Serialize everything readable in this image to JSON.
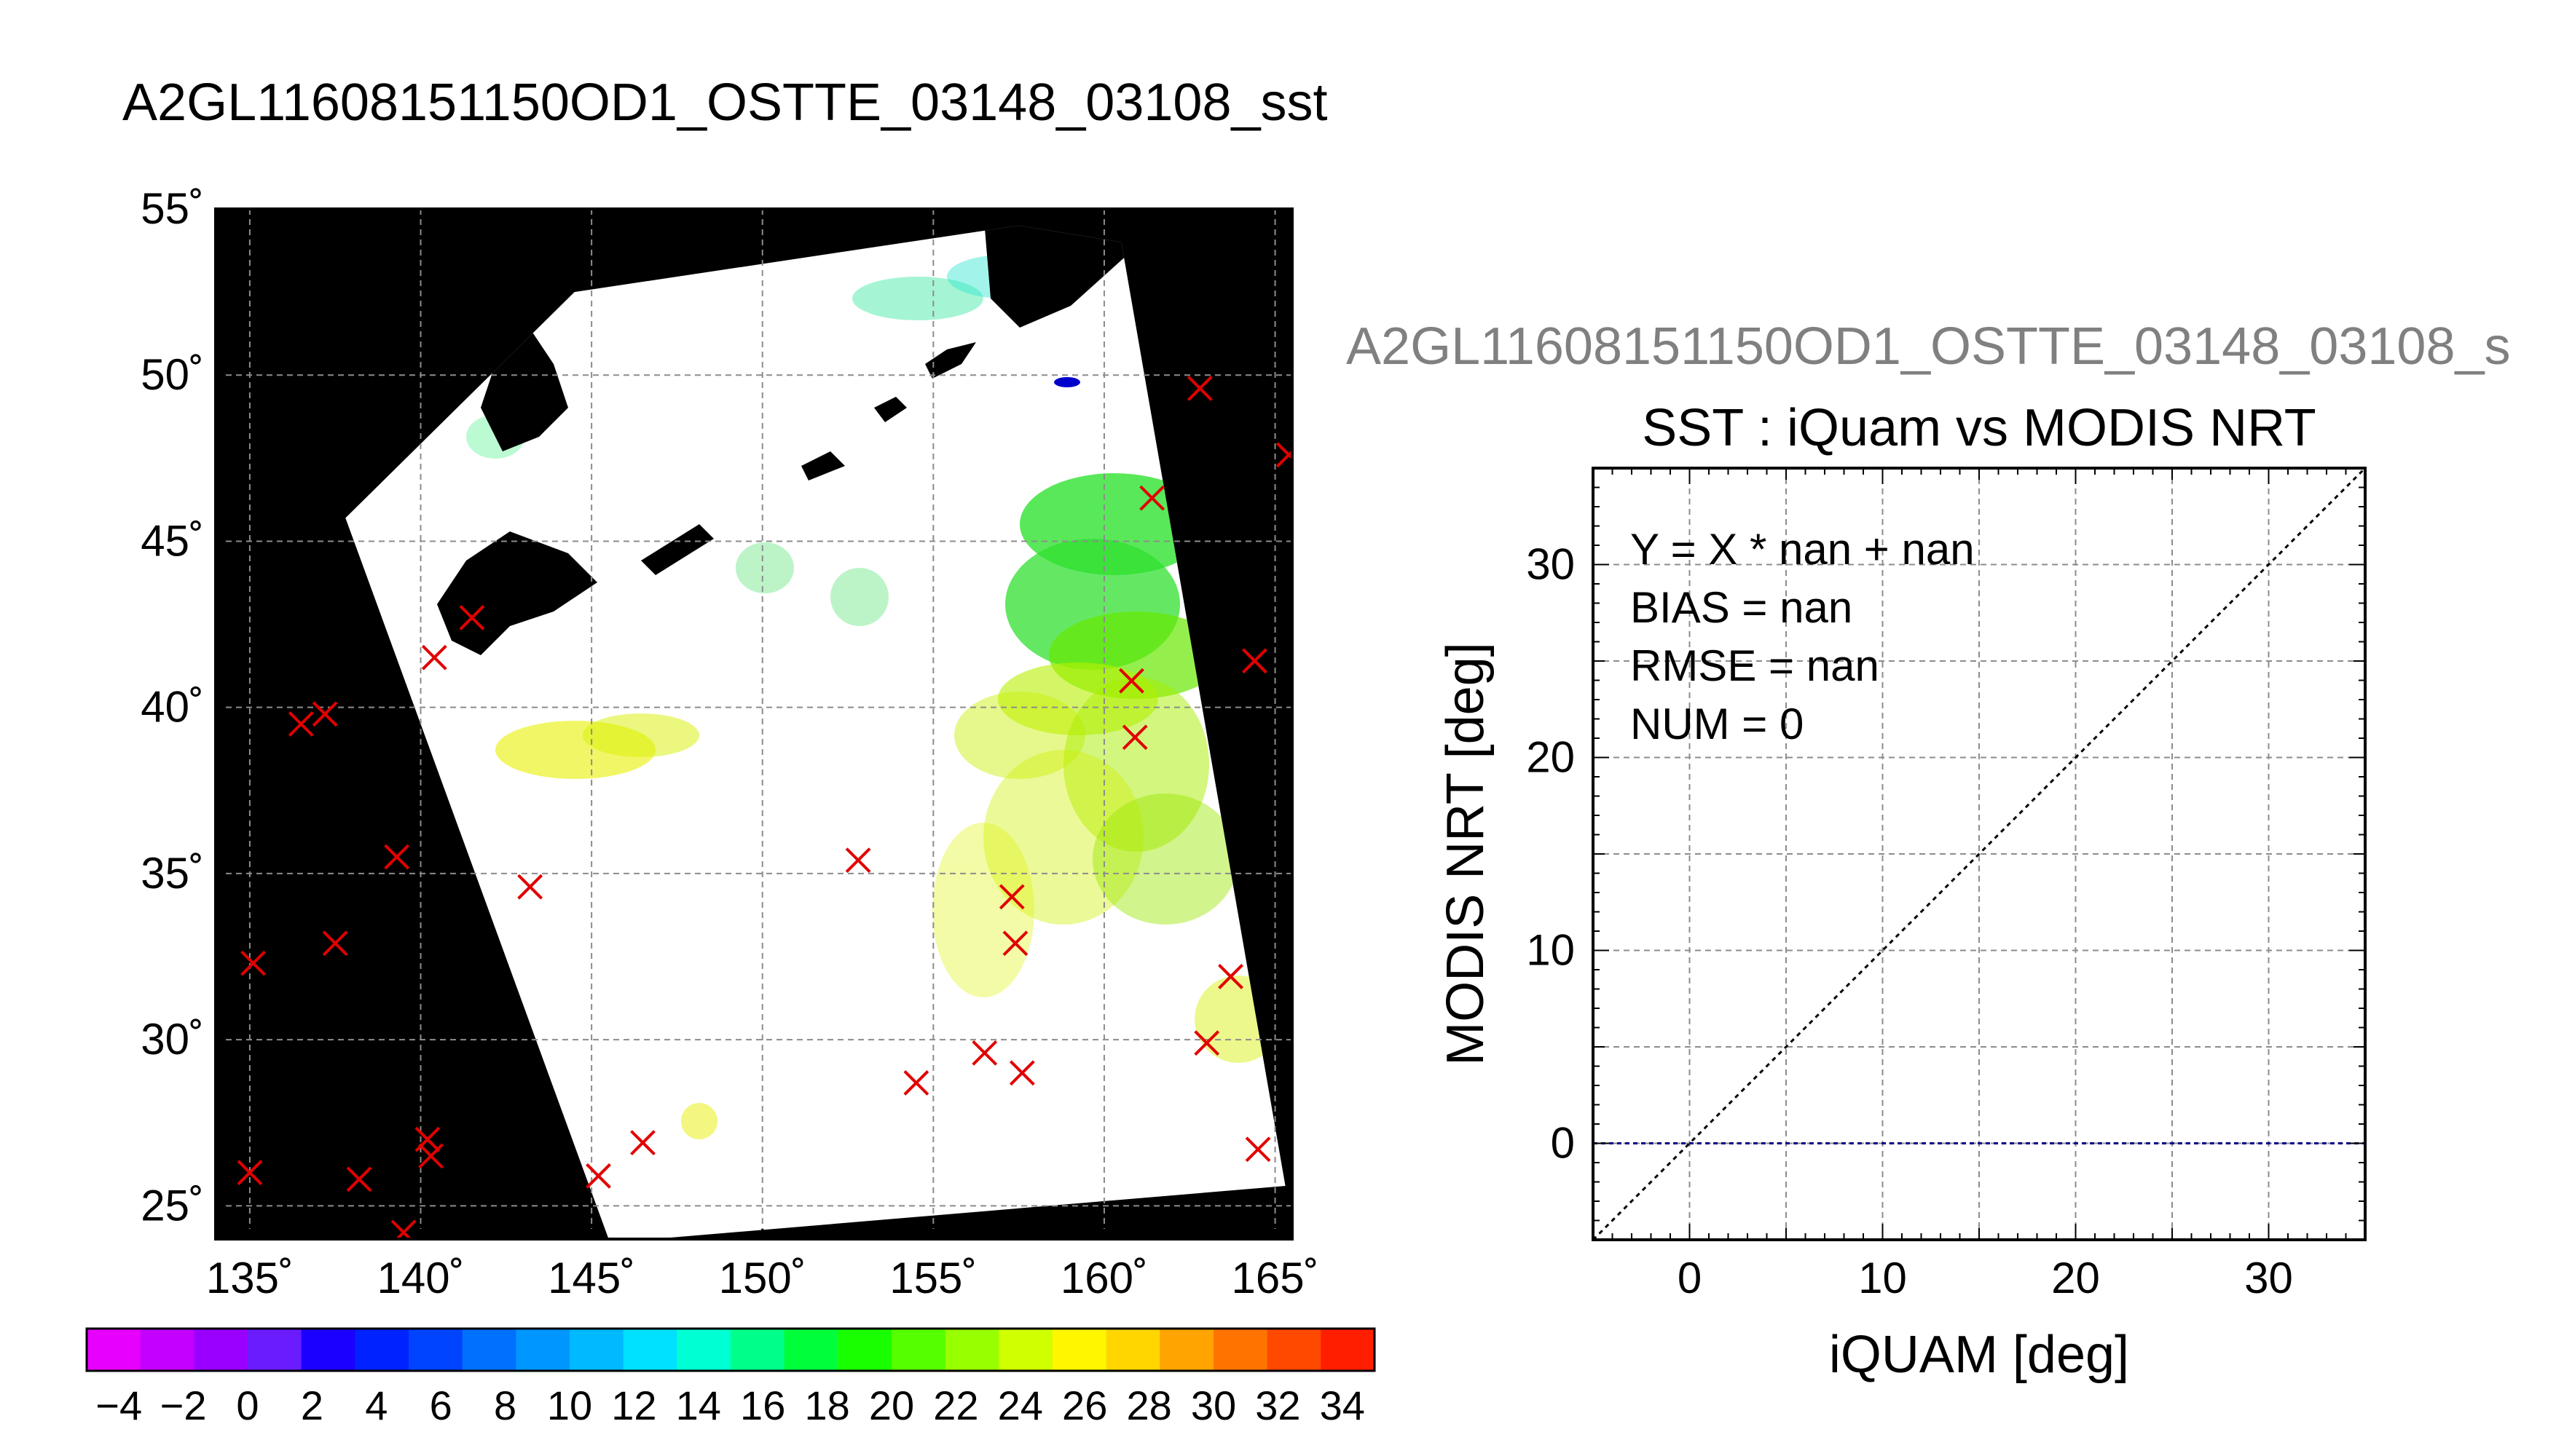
{
  "map_title": "A2GL11608151150OD1_OSTTE_03148_03108_sst",
  "scatter_title_overflow": "A2GL11608151150OD1_OSTTE_03148_03108_s",
  "colors": {
    "background": "#ffffff",
    "land": "#000000",
    "grid": "#8c8c8c",
    "marker": "#e10000",
    "fit_line": "#00008b",
    "identity_line": "#000000",
    "overflow_title": "#808080"
  },
  "chart_data": [
    {
      "type": "scatter",
      "subtype": "map",
      "title": "A2GL11608151150OD1_OSTTE_03148_03108_sst",
      "xlim": [
        134,
        165.5
      ],
      "ylim": [
        24,
        55
      ],
      "x_ticks": [
        135,
        140,
        145,
        150,
        155,
        160,
        165
      ],
      "y_ticks": [
        25,
        30,
        35,
        40,
        45,
        50,
        55
      ],
      "x_tick_labels": [
        "135˚",
        "140˚",
        "145˚",
        "150˚",
        "155˚",
        "160˚",
        "165˚"
      ],
      "y_tick_labels": [
        "25˚",
        "30˚",
        "35˚",
        "40˚",
        "45˚",
        "50˚",
        "55˚"
      ],
      "grid": true,
      "swath_corners": [
        [
          144.5,
          52.5
        ],
        [
          157.5,
          54.5
        ],
        [
          160.5,
          54.0
        ],
        [
          165.3,
          25.6
        ],
        [
          146.8,
          24.0
        ],
        [
          145.5,
          24.0
        ],
        [
          137.8,
          45.7
        ]
      ],
      "points": [
        [
          135.0,
          26.0
        ],
        [
          135.1,
          32.3
        ],
        [
          136.5,
          39.5
        ],
        [
          137.2,
          39.8
        ],
        [
          137.5,
          32.9
        ],
        [
          138.2,
          25.8
        ],
        [
          139.5,
          24.2
        ],
        [
          139.3,
          35.5
        ],
        [
          140.2,
          27.0
        ],
        [
          140.3,
          26.5
        ],
        [
          140.4,
          41.5
        ],
        [
          141.5,
          42.7
        ],
        [
          143.2,
          34.6
        ],
        [
          145.2,
          25.9
        ],
        [
          146.5,
          26.9
        ],
        [
          152.8,
          35.4
        ],
        [
          154.5,
          28.7
        ],
        [
          156.5,
          29.6
        ],
        [
          157.3,
          34.3
        ],
        [
          157.4,
          32.9
        ],
        [
          157.6,
          29.0
        ],
        [
          160.8,
          40.8
        ],
        [
          160.9,
          39.1
        ],
        [
          161.4,
          46.3
        ],
        [
          162.8,
          49.6
        ],
        [
          163.0,
          29.9
        ],
        [
          163.7,
          31.9
        ],
        [
          164.4,
          41.4
        ],
        [
          164.5,
          26.7
        ],
        [
          165.4,
          47.6
        ]
      ]
    },
    {
      "type": "heatmap",
      "subtype": "colorbar",
      "range": [
        -5,
        35
      ],
      "tick_labels": [
        "−4",
        "−2",
        "0",
        "2",
        "4",
        "6",
        "8",
        "10",
        "12",
        "14",
        "16",
        "18",
        "20",
        "22",
        "24",
        "26",
        "28",
        "30",
        "32",
        "34"
      ],
      "tick_values": [
        -4,
        -2,
        0,
        2,
        4,
        6,
        8,
        10,
        12,
        14,
        16,
        18,
        20,
        22,
        24,
        26,
        28,
        30,
        32,
        34
      ],
      "colors": [
        "#e800ff",
        "#c400ff",
        "#9a00ff",
        "#6a1cff",
        "#1c00ff",
        "#0022ff",
        "#0044ff",
        "#0070ff",
        "#0096ff",
        "#00b9ff",
        "#00e0ff",
        "#00ffd2",
        "#00ff8a",
        "#00ff3a",
        "#1aff00",
        "#56ff00",
        "#98ff00",
        "#cfff00",
        "#fff600",
        "#ffd600",
        "#ffa400",
        "#ff7400",
        "#ff4800",
        "#ff1e00"
      ]
    },
    {
      "type": "scatter",
      "title": "SST : iQuam vs MODIS NRT",
      "xlabel": "iQUAM [deg]",
      "ylabel": "MODIS NRT [deg]",
      "xlim": [
        -5,
        35
      ],
      "ylim": [
        -5,
        35
      ],
      "x_ticks": [
        0,
        10,
        20,
        30
      ],
      "y_ticks": [
        0,
        10,
        20,
        30
      ],
      "x_tick_labels": [
        "0",
        "10",
        "20",
        "30"
      ],
      "y_tick_labels": [
        "0",
        "10",
        "20",
        "30"
      ],
      "grid": true,
      "annotations": [
        "Y = X * nan + nan",
        "BIAS = nan",
        "RMSE = nan",
        "NUM = 0"
      ],
      "identity_line": [
        [
          -5,
          -5
        ],
        [
          35,
          35
        ]
      ],
      "fit_line": [
        [
          -5,
          0
        ],
        [
          35,
          0
        ]
      ],
      "points": []
    }
  ]
}
